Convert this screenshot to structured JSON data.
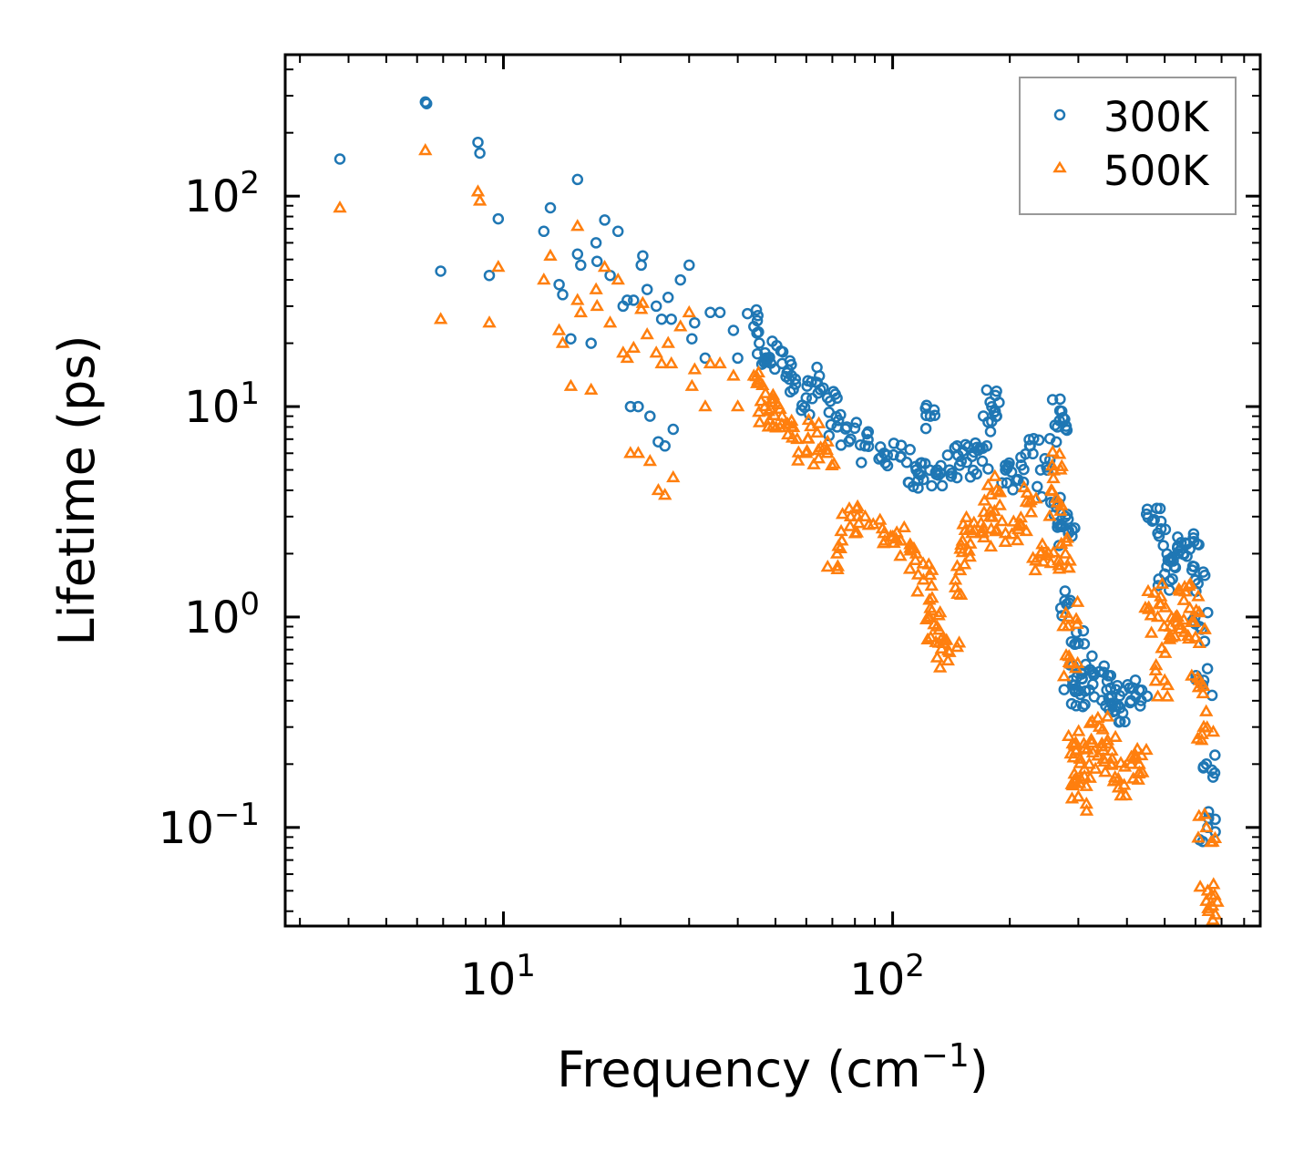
{
  "chart_data": {
    "type": "scatter",
    "xscale": "log",
    "yscale": "log",
    "xlabel": "Frequency (cm",
    "xlabel_sup": "−1",
    "xlabel_end": ")",
    "ylabel": "Lifetime (ps)",
    "xlim": [
      2.75,
      880
    ],
    "ylim": [
      0.034,
      470
    ],
    "xticks": [
      {
        "value": 10,
        "base": "10",
        "exp": "1"
      },
      {
        "value": 100,
        "base": "10",
        "exp": "2"
      }
    ],
    "yticks": [
      {
        "value": 0.1,
        "base": "10",
        "exp": "−1"
      },
      {
        "value": 1,
        "base": "10",
        "exp": "0"
      },
      {
        "value": 10,
        "base": "10",
        "exp": "1"
      },
      {
        "value": 100,
        "base": "10",
        "exp": "2"
      }
    ],
    "legend_position": "top-right",
    "series": [
      {
        "name": "300K",
        "marker": "circle",
        "color": "#1f77b4",
        "points": [
          [
            3.8,
            150
          ],
          [
            6.3,
            280
          ],
          [
            6.35,
            275
          ],
          [
            6.9,
            44
          ],
          [
            8.6,
            180
          ],
          [
            8.7,
            160
          ],
          [
            9.2,
            42
          ],
          [
            9.7,
            78
          ],
          [
            12.7,
            68
          ],
          [
            13.2,
            88
          ],
          [
            13.9,
            38
          ],
          [
            14.2,
            34
          ],
          [
            14.9,
            21
          ],
          [
            15.5,
            53
          ],
          [
            15.5,
            120
          ],
          [
            15.8,
            47
          ],
          [
            16.8,
            20
          ],
          [
            17.3,
            60
          ],
          [
            17.4,
            49
          ],
          [
            18.2,
            77
          ],
          [
            18.8,
            42
          ],
          [
            19.7,
            68
          ],
          [
            20.3,
            30
          ],
          [
            20.8,
            32
          ],
          [
            21.2,
            10
          ],
          [
            21.6,
            32
          ],
          [
            22.2,
            10
          ],
          [
            22.6,
            47
          ],
          [
            22.8,
            52
          ],
          [
            23.4,
            36
          ],
          [
            23.8,
            9
          ],
          [
            24.7,
            30
          ],
          [
            25,
            6.8
          ],
          [
            25.5,
            26
          ],
          [
            26,
            6.5
          ],
          [
            26.5,
            33
          ],
          [
            27,
            26
          ],
          [
            27.3,
            7.8
          ],
          [
            28.5,
            40
          ],
          [
            30,
            47
          ],
          [
            30.5,
            21
          ],
          [
            31,
            25
          ],
          [
            33,
            17
          ],
          [
            34,
            28
          ],
          [
            36,
            28
          ],
          [
            39,
            23
          ],
          [
            40,
            17
          ],
          [
            44,
            24
          ],
          [
            47,
            18
          ],
          [
            48,
            17
          ],
          [
            52,
            16
          ],
          [
            55,
            14
          ],
          [
            60,
            11
          ],
          [
            64,
            13
          ],
          [
            68,
            11
          ],
          [
            72,
            8
          ],
          [
            78,
            7
          ],
          [
            85,
            6.5
          ],
          [
            95,
            6
          ],
          [
            105,
            5.8
          ],
          [
            115,
            5
          ],
          [
            120,
            4.5
          ],
          [
            125,
            9
          ],
          [
            130,
            5
          ],
          [
            140,
            5
          ],
          [
            150,
            5.5
          ],
          [
            160,
            5.8
          ],
          [
            170,
            5.5
          ],
          [
            178,
            10.5
          ],
          [
            185,
            9
          ],
          [
            195,
            5
          ],
          [
            210,
            4.5
          ],
          [
            225,
            6.5
          ],
          [
            240,
            5
          ],
          [
            255,
            3.5
          ],
          [
            265,
            8
          ],
          [
            272,
            9.5
          ],
          [
            278,
            3
          ],
          [
            283,
            2.5
          ],
          [
            286,
            1.2
          ],
          [
            290,
            0.5
          ],
          [
            295,
            0.45
          ],
          [
            300,
            0.75
          ],
          [
            310,
            0.55
          ],
          [
            320,
            0.45
          ],
          [
            340,
            0.55
          ],
          [
            355,
            0.45
          ],
          [
            365,
            0.42
          ],
          [
            380,
            0.38
          ],
          [
            410,
            0.4
          ],
          [
            430,
            0.45
          ],
          [
            470,
            2.9
          ],
          [
            480,
            2.5
          ],
          [
            500,
            1.6
          ],
          [
            520,
            1.9
          ],
          [
            540,
            2
          ],
          [
            560,
            2
          ],
          [
            580,
            2.1
          ],
          [
            600,
            1.5
          ],
          [
            615,
            0.9
          ],
          [
            630,
            0.5
          ],
          [
            640,
            0.2
          ],
          [
            645,
            0.1
          ]
        ]
      },
      {
        "name": "500K",
        "marker": "triangle",
        "color": "#ff7f0e",
        "points": [
          [
            3.8,
            88
          ],
          [
            6.3,
            165
          ],
          [
            6.9,
            26
          ],
          [
            8.6,
            105
          ],
          [
            8.7,
            95
          ],
          [
            9.2,
            25
          ],
          [
            9.7,
            46
          ],
          [
            12.7,
            40
          ],
          [
            13.2,
            52
          ],
          [
            13.9,
            23
          ],
          [
            14.2,
            20
          ],
          [
            14.9,
            12.5
          ],
          [
            15.5,
            72
          ],
          [
            15.5,
            32
          ],
          [
            15.8,
            28
          ],
          [
            16.8,
            12
          ],
          [
            17.3,
            36
          ],
          [
            17.4,
            30
          ],
          [
            18.2,
            46
          ],
          [
            18.8,
            25
          ],
          [
            19.7,
            40
          ],
          [
            20.3,
            18
          ],
          [
            20.8,
            17
          ],
          [
            21.2,
            6
          ],
          [
            21.6,
            19
          ],
          [
            22.2,
            6
          ],
          [
            22.6,
            29
          ],
          [
            22.8,
            31
          ],
          [
            23.4,
            22
          ],
          [
            23.8,
            5.5
          ],
          [
            24.7,
            18
          ],
          [
            25,
            4
          ],
          [
            25.5,
            16
          ],
          [
            26,
            3.8
          ],
          [
            26.5,
            20
          ],
          [
            27,
            16
          ],
          [
            27.3,
            4.6
          ],
          [
            28.5,
            24
          ],
          [
            30,
            28
          ],
          [
            30.5,
            12.5
          ],
          [
            31,
            15
          ],
          [
            33,
            10
          ],
          [
            34,
            16
          ],
          [
            36,
            16
          ],
          [
            39,
            14
          ],
          [
            40,
            10
          ],
          [
            44,
            14
          ],
          [
            47,
            10
          ],
          [
            48,
            9.5
          ],
          [
            52,
            9
          ],
          [
            55,
            8
          ],
          [
            60,
            6
          ],
          [
            64,
            7.5
          ],
          [
            68,
            6
          ],
          [
            72,
            2
          ],
          [
            78,
            3
          ],
          [
            85,
            3
          ],
          [
            95,
            2.5
          ],
          [
            105,
            2.3
          ],
          [
            115,
            2
          ],
          [
            120,
            1.5
          ],
          [
            125,
            1.1
          ],
          [
            130,
            0.9
          ],
          [
            135,
            0.75
          ],
          [
            140,
            0.68
          ],
          [
            145,
            1.5
          ],
          [
            150,
            2.2
          ],
          [
            160,
            2.5
          ],
          [
            170,
            2.5
          ],
          [
            178,
            3
          ],
          [
            185,
            4
          ],
          [
            195,
            2.5
          ],
          [
            210,
            2.7
          ],
          [
            225,
            3.5
          ],
          [
            240,
            2
          ],
          [
            255,
            1.8
          ],
          [
            265,
            3.5
          ],
          [
            272,
            5.2
          ],
          [
            278,
            2
          ],
          [
            283,
            1
          ],
          [
            286,
            0.6
          ],
          [
            290,
            0.25
          ],
          [
            295,
            0.17
          ],
          [
            300,
            0.14
          ],
          [
            310,
            0.25
          ],
          [
            320,
            0.2
          ],
          [
            340,
            0.3
          ],
          [
            355,
            0.25
          ],
          [
            365,
            0.2
          ],
          [
            380,
            0.17
          ],
          [
            410,
            0.2
          ],
          [
            430,
            0.2
          ],
          [
            470,
            1.3
          ],
          [
            480,
            1
          ],
          [
            500,
            0.5
          ],
          [
            520,
            0.8
          ],
          [
            540,
            1
          ],
          [
            560,
            1.2
          ],
          [
            580,
            1.1
          ],
          [
            600,
            0.8
          ],
          [
            615,
            0.5
          ],
          [
            630,
            0.3
          ],
          [
            640,
            0.1
          ],
          [
            645,
            0.05
          ],
          [
            648,
            0.04
          ]
        ]
      }
    ]
  }
}
